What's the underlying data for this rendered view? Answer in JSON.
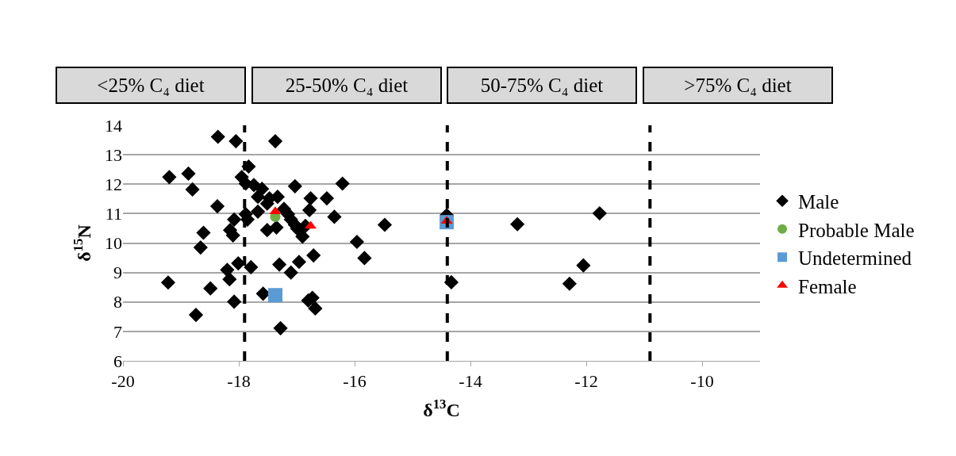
{
  "chart_data": {
    "type": "scatter",
    "xlabel": "δ$^{13}$C",
    "ylabel": "δ$^{15}$N",
    "xlim": [
      -20,
      -9
    ],
    "xticks": [
      -20,
      -18,
      -16,
      -14,
      -12,
      -10
    ],
    "ylim": [
      6,
      14
    ],
    "yticks": [
      6,
      7,
      8,
      9,
      10,
      11,
      12,
      13,
      14
    ],
    "grid": "y",
    "legend": "right",
    "annotations": [
      "<25% C₄ diet",
      "25-50% C₄ diet",
      "50-75% C₄ diet",
      ">75% C₄ diet"
    ],
    "ref_lines": [
      {
        "axis": "x",
        "value": -17.9,
        "color": "#000000",
        "line_style": "dashed"
      },
      {
        "axis": "x",
        "value": -14.4,
        "color": "#000000",
        "line_style": "dashed"
      },
      {
        "axis": "x",
        "value": -10.9,
        "color": "#000000",
        "line_style": "dashed"
      }
    ],
    "series": [
      {
        "name": "Male",
        "color": "#000000",
        "marker": "diamond",
        "x": [
          -18.36,
          -18.05,
          -19.2,
          -18.87,
          -18.8,
          -17.83,
          -17.95,
          -17.88,
          -18.37,
          -18.08,
          -17.85,
          -18.15,
          -18.1,
          -18.61,
          -18.66,
          -18.01,
          -17.79,
          -18.2,
          -18.16,
          -19.22,
          -18.49,
          -18.08,
          -18.74,
          -17.37,
          -17.58,
          -17.74,
          -17.6,
          -17.67,
          -17.03,
          -16.21,
          -17.47,
          -17.33,
          -17.51,
          -17.22,
          -17.15,
          -17.1,
          -17.03,
          -16.99,
          -16.9,
          -16.76,
          -16.48,
          -16.78,
          -16.35,
          -15.48,
          -17.67,
          -17.51,
          -17.35,
          -16.85,
          -15.96,
          -15.83,
          -16.71,
          -16.96,
          -17.3,
          -17.1,
          -16.8,
          -16.73,
          -16.68,
          -17.28,
          -14.41,
          -14.33,
          -13.19,
          -11.77,
          -12.05,
          -12.29,
          -17.88
        ],
        "values": [
          13.61,
          13.46,
          12.24,
          12.36,
          11.82,
          12.6,
          12.24,
          12.02,
          11.25,
          10.8,
          10.8,
          10.44,
          10.26,
          10.35,
          9.85,
          9.31,
          9.18,
          9.09,
          8.77,
          8.66,
          8.46,
          8.01,
          7.56,
          13.46,
          8.28,
          11.97,
          11.84,
          11.57,
          11.93,
          12.02,
          11.52,
          11.57,
          11.34,
          11.16,
          10.98,
          10.8,
          10.62,
          10.49,
          10.22,
          11.52,
          11.52,
          11.12,
          10.89,
          10.62,
          11.07,
          10.44,
          10.53,
          10.58,
          10.04,
          9.49,
          9.58,
          9.36,
          9.27,
          9.0,
          8.05,
          8.14,
          7.78,
          7.11,
          10.95,
          8.67,
          10.64,
          11.01,
          9.24,
          8.62,
          10.98
        ]
      },
      {
        "name": "Probable Male",
        "color": "#70ad47",
        "marker": "circle",
        "x": [
          -17.37
        ],
        "values": [
          10.89
        ]
      },
      {
        "name": "Undetermined",
        "color": "#5b9bd5",
        "marker": "square",
        "x": [
          -17.37,
          -14.41
        ],
        "values": [
          8.23,
          10.71
        ]
      },
      {
        "name": "Female",
        "color": "#ff0000",
        "marker": "triangle",
        "x": [
          -17.37,
          -16.76,
          -14.41
        ],
        "values": [
          11.07,
          10.58,
          10.75
        ]
      }
    ]
  }
}
